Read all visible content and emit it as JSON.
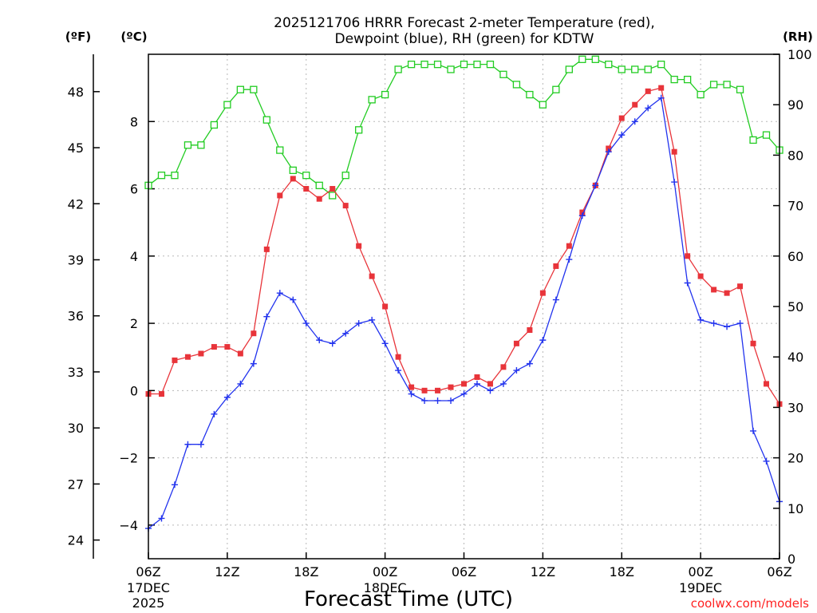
{
  "title_line1": "2025121706 HRRR Forecast 2-meter Temperature (red),",
  "title_line2": "Dewpoint (blue), RH (green) for KDTW",
  "unit_f": "(ºF)",
  "unit_c": "(ºC)",
  "unit_rh": "(RH)",
  "credit": "coolwx.com/models",
  "colors": {
    "temperature": "#e8343a",
    "dewpoint": "#2233ee",
    "rh": "#22cc22",
    "credit": "#ff2222"
  },
  "chart_data": {
    "type": "line",
    "title": "2025121706 HRRR Forecast 2-meter Temperature (red), Dewpoint (blue), RH (green) for KDTW",
    "xlabel": "Forecast Time (UTC)",
    "x_hours": [
      0,
      1,
      2,
      3,
      4,
      5,
      6,
      7,
      8,
      9,
      10,
      11,
      12,
      13,
      14,
      15,
      16,
      17,
      18,
      19,
      20,
      21,
      22,
      23,
      24,
      25,
      26,
      27,
      28,
      29,
      30,
      31,
      32,
      33,
      34,
      35,
      36,
      37,
      38,
      39,
      40,
      41,
      42,
      43,
      44,
      45,
      46,
      47,
      48
    ],
    "x_range_hours": [
      0,
      48
    ],
    "x_ticks": [
      {
        "hour": 0,
        "label": "06Z",
        "sub1": "17DEC",
        "sub2": "2025"
      },
      {
        "hour": 6,
        "label": "12Z",
        "sub1": "",
        "sub2": ""
      },
      {
        "hour": 12,
        "label": "18Z",
        "sub1": "",
        "sub2": ""
      },
      {
        "hour": 18,
        "label": "00Z",
        "sub1": "18DEC",
        "sub2": ""
      },
      {
        "hour": 24,
        "label": "06Z",
        "sub1": "",
        "sub2": ""
      },
      {
        "hour": 30,
        "label": "12Z",
        "sub1": "",
        "sub2": ""
      },
      {
        "hour": 36,
        "label": "18Z",
        "sub1": "",
        "sub2": ""
      },
      {
        "hour": 42,
        "label": "00Z",
        "sub1": "19DEC",
        "sub2": ""
      },
      {
        "hour": 48,
        "label": "06Z",
        "sub1": "",
        "sub2": ""
      }
    ],
    "yleft_c_range": [
      -5,
      10
    ],
    "yleft_c_ticks": [
      -4,
      -2,
      0,
      2,
      4,
      6,
      8
    ],
    "yleft_f_ticks": [
      24,
      27,
      30,
      33,
      36,
      39,
      42,
      45,
      48
    ],
    "yright_rh_range": [
      0,
      100
    ],
    "yright_rh_ticks": [
      0,
      10,
      20,
      30,
      40,
      50,
      60,
      70,
      80,
      90,
      100
    ],
    "series": [
      {
        "name": "Temperature (°C)",
        "axis": "celsius",
        "color": "#e8343a",
        "marker": "square-filled",
        "values": [
          -0.1,
          -0.1,
          0.9,
          1.0,
          1.1,
          1.3,
          1.3,
          1.1,
          1.7,
          4.2,
          5.8,
          6.3,
          6.0,
          5.7,
          6.0,
          5.5,
          4.3,
          3.4,
          2.5,
          1.0,
          0.1,
          0.0,
          0.0,
          0.1,
          0.2,
          0.4,
          0.2,
          0.7,
          1.4,
          1.8,
          2.9,
          3.7,
          4.3,
          5.3,
          6.1,
          7.2,
          8.1,
          8.5,
          8.9,
          9.0,
          7.1,
          4.0,
          3.4,
          3.0,
          2.9,
          3.1,
          1.4,
          0.2,
          -0.4
        ]
      },
      {
        "name": "Dewpoint (°C)",
        "axis": "celsius",
        "color": "#2233ee",
        "marker": "plus",
        "values": [
          -4.1,
          -3.8,
          -2.8,
          -1.6,
          -1.6,
          -0.7,
          -0.2,
          0.2,
          0.8,
          2.2,
          2.9,
          2.7,
          2.0,
          1.5,
          1.4,
          1.7,
          2.0,
          2.1,
          1.4,
          0.6,
          -0.1,
          -0.3,
          -0.3,
          -0.3,
          -0.1,
          0.2,
          0.0,
          0.2,
          0.6,
          0.8,
          1.5,
          2.7,
          3.9,
          5.2,
          6.1,
          7.1,
          7.6,
          8.0,
          8.4,
          8.7,
          6.2,
          3.2,
          2.1,
          2.0,
          1.9,
          2.0,
          -1.2,
          -2.1,
          -3.3
        ]
      },
      {
        "name": "RH (%)",
        "axis": "rh",
        "color": "#22cc22",
        "marker": "square-open",
        "values": [
          74,
          76,
          76,
          82,
          82,
          86,
          90,
          93,
          93,
          87,
          81,
          77,
          76,
          74,
          72,
          76,
          85,
          91,
          92,
          97,
          98,
          98,
          98,
          97,
          98,
          98,
          98,
          96,
          94,
          92,
          90,
          93,
          97,
          99,
          99,
          98,
          97,
          97,
          97,
          98,
          95,
          95,
          92,
          94,
          94,
          93,
          83,
          84,
          81
        ]
      }
    ]
  }
}
